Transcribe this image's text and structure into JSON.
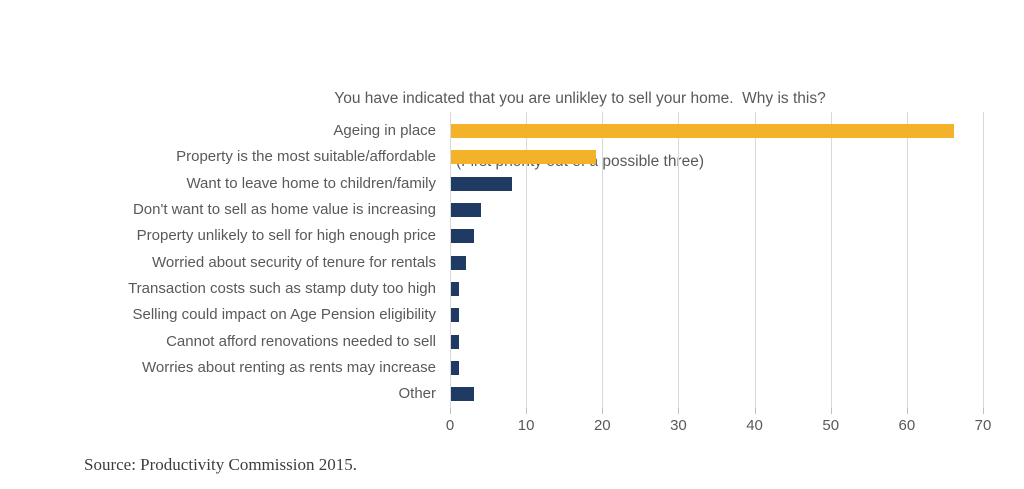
{
  "title": {
    "line1": "You have indicated that you are unlikley to sell your home.  Why is this?",
    "line2": "(First priority out of a possible three)"
  },
  "source": "Source: Productivity Commission 2015.",
  "chart_data": {
    "type": "bar",
    "orientation": "horizontal",
    "title": "You have indicated that you are unlikley to sell your home.  Why is this? (First priority out of a possible three)",
    "categories": [
      "Ageing in place",
      "Property is the most suitable/affordable",
      "Want to leave home to children/family",
      "Don't want to sell as home value is increasing",
      "Property unlikely to sell for high enough price",
      "Worried about security of tenure for rentals",
      "Transaction costs such as stamp duty too high",
      "Selling could impact on Age Pension eligibility",
      "Cannot afford renovations needed to sell",
      "Worries about renting as rents may increase",
      "Other"
    ],
    "values": [
      66,
      19,
      8,
      4,
      3,
      2,
      1,
      1,
      1,
      1,
      3
    ],
    "bar_colors": [
      "#f3b229",
      "#f3b229",
      "#1f3a63",
      "#1f3a63",
      "#1f3a63",
      "#1f3a63",
      "#1f3a63",
      "#1f3a63",
      "#1f3a63",
      "#1f3a63",
      "#1f3a63"
    ],
    "xlabel": "",
    "ylabel": "",
    "xlim": [
      0,
      70
    ],
    "xticks": [
      0,
      10,
      20,
      30,
      40,
      50,
      60,
      70
    ],
    "grid": "vertical",
    "legend": "none",
    "colors": {
      "highlight": "#f3b229",
      "default": "#1f3a63",
      "gridline": "#d9d9d9",
      "text": "#595959"
    }
  }
}
